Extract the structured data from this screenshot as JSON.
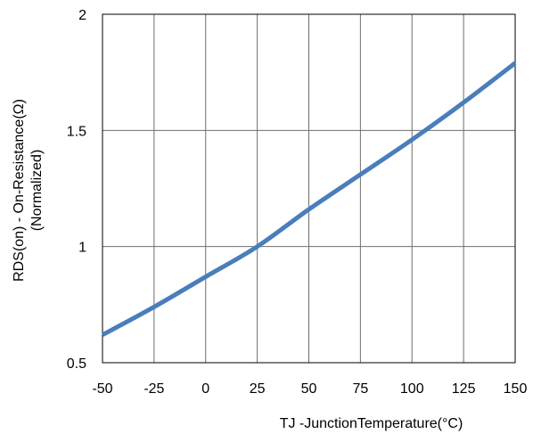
{
  "chart_data": {
    "type": "line",
    "title": "",
    "xlabel": "TJ -JunctionTemperature(°C)",
    "ylabel_line1": "RDS(on) - On-Resistance(Ω)",
    "ylabel_line2": "(Normalized)",
    "xlim": [
      -50,
      150
    ],
    "ylim": [
      0.5,
      2
    ],
    "x_ticks": [
      -50,
      -25,
      0,
      25,
      50,
      75,
      100,
      125,
      150
    ],
    "y_ticks": [
      0.5,
      1,
      1.5,
      2
    ],
    "x_tick_labels": [
      "-50",
      "-25",
      "0",
      "25",
      "50",
      "75",
      "100",
      "125",
      "150"
    ],
    "y_tick_labels": [
      "0.5",
      "1",
      "1.5",
      "2"
    ],
    "grid": true,
    "series": [
      {
        "color": "#4a7ebb",
        "x": [
          -50,
          -25,
          0,
          25,
          50,
          75,
          100,
          125,
          150
        ],
        "y": [
          0.62,
          0.74,
          0.87,
          1.0,
          1.16,
          1.31,
          1.46,
          1.62,
          1.79
        ]
      }
    ]
  }
}
